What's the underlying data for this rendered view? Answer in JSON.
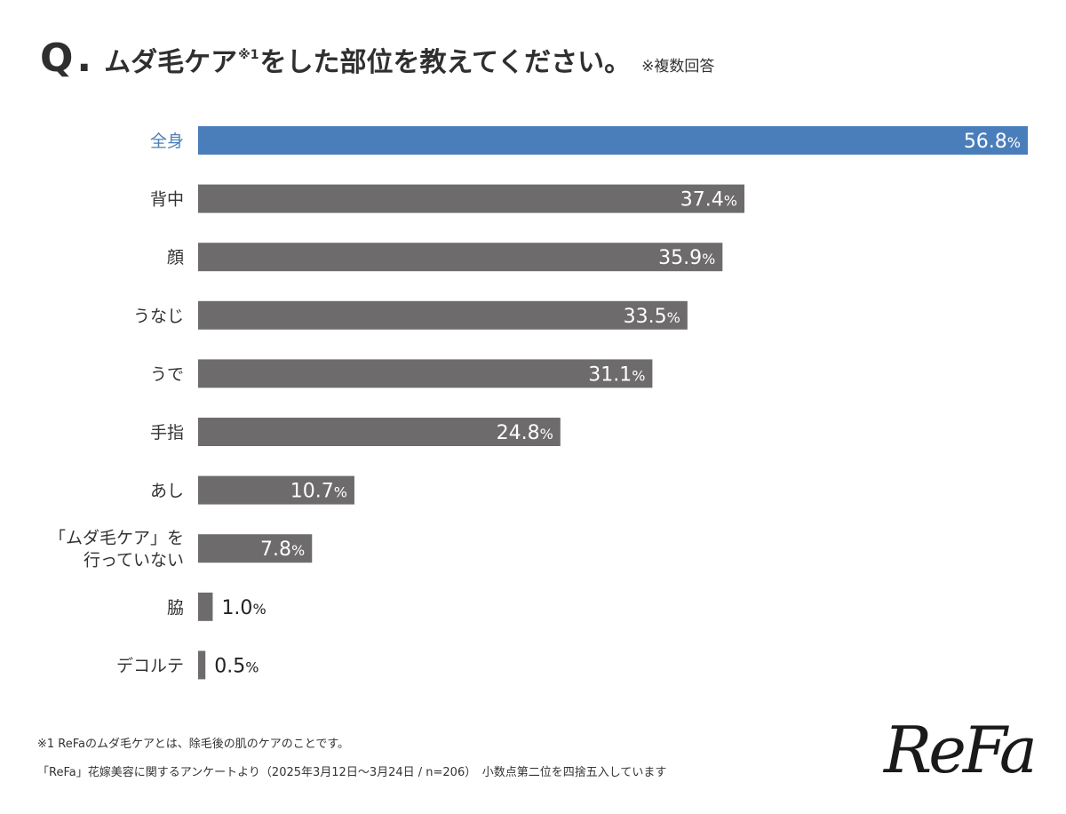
{
  "title": {
    "q_mark": "Q",
    "q_dot": ".",
    "main_before": "ムダ毛ケア",
    "sup": "※1",
    "main_after": "をした部位を教えてください。",
    "note": "※複数回答"
  },
  "colors": {
    "highlight": "#4a7ebb",
    "bar": "#6d6b6c",
    "label_highlight": "#4a7ebb",
    "label": "#333333"
  },
  "chart_data": {
    "type": "bar",
    "orientation": "horizontal",
    "categories": [
      "全身",
      "背中",
      "顔",
      "うなじ",
      "うで",
      "手指",
      "あし",
      "「ムダ毛ケア」を\n行っていない",
      "脇",
      "デコルテ"
    ],
    "values": [
      56.8,
      37.4,
      35.9,
      33.5,
      31.1,
      24.8,
      10.7,
      7.8,
      1.0,
      0.5
    ],
    "value_labels": [
      "56.8",
      "37.4",
      "35.9",
      "33.5",
      "31.1",
      "24.8",
      "10.7",
      "7.8",
      "1.0",
      "0.5"
    ],
    "unit": "%",
    "highlight_index": 0,
    "xlim": [
      0,
      56.8
    ],
    "title": "ムダ毛ケア※1をした部位を教えてください。",
    "xlabel": "",
    "ylabel": ""
  },
  "footnotes": {
    "line1": "※1 ReFaのムダ毛ケアとは、除毛後の肌のケアのことです。",
    "line2": "「ReFa」花嫁美容に関するアンケートより（2025年3月12日〜3月24日 / n=206）　小数点第二位を四捨五入しています"
  },
  "logo": {
    "text": "ReFa"
  }
}
